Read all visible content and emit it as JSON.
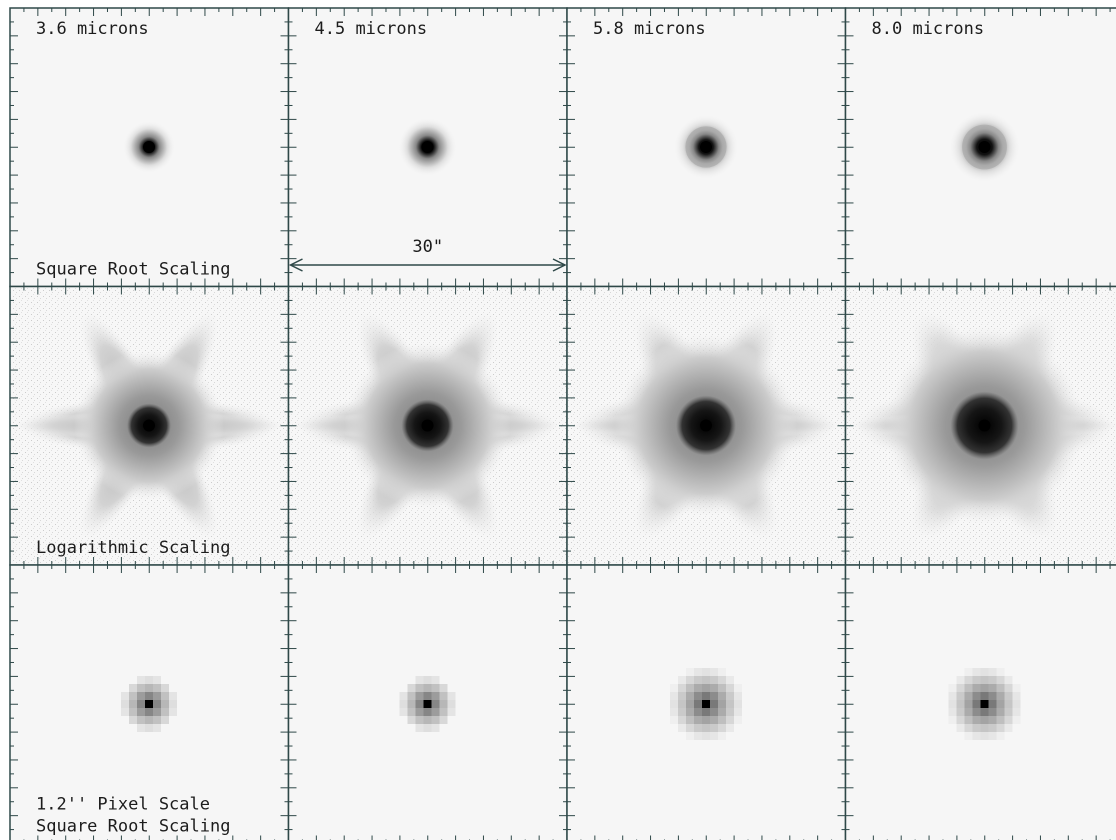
{
  "columns": [
    {
      "label": "3.6 microns"
    },
    {
      "label": "4.5 microns"
    },
    {
      "label": "5.8 microns"
    },
    {
      "label": "8.0 microns"
    }
  ],
  "rows": [
    {
      "lines": [
        "Square Root Scaling"
      ]
    },
    {
      "lines": [
        "Logarithmic Scaling"
      ]
    },
    {
      "lines": [
        "1.2'' Pixel Scale",
        "Square Root Scaling"
      ]
    }
  ],
  "scale_bar": {
    "label": "30\""
  }
}
